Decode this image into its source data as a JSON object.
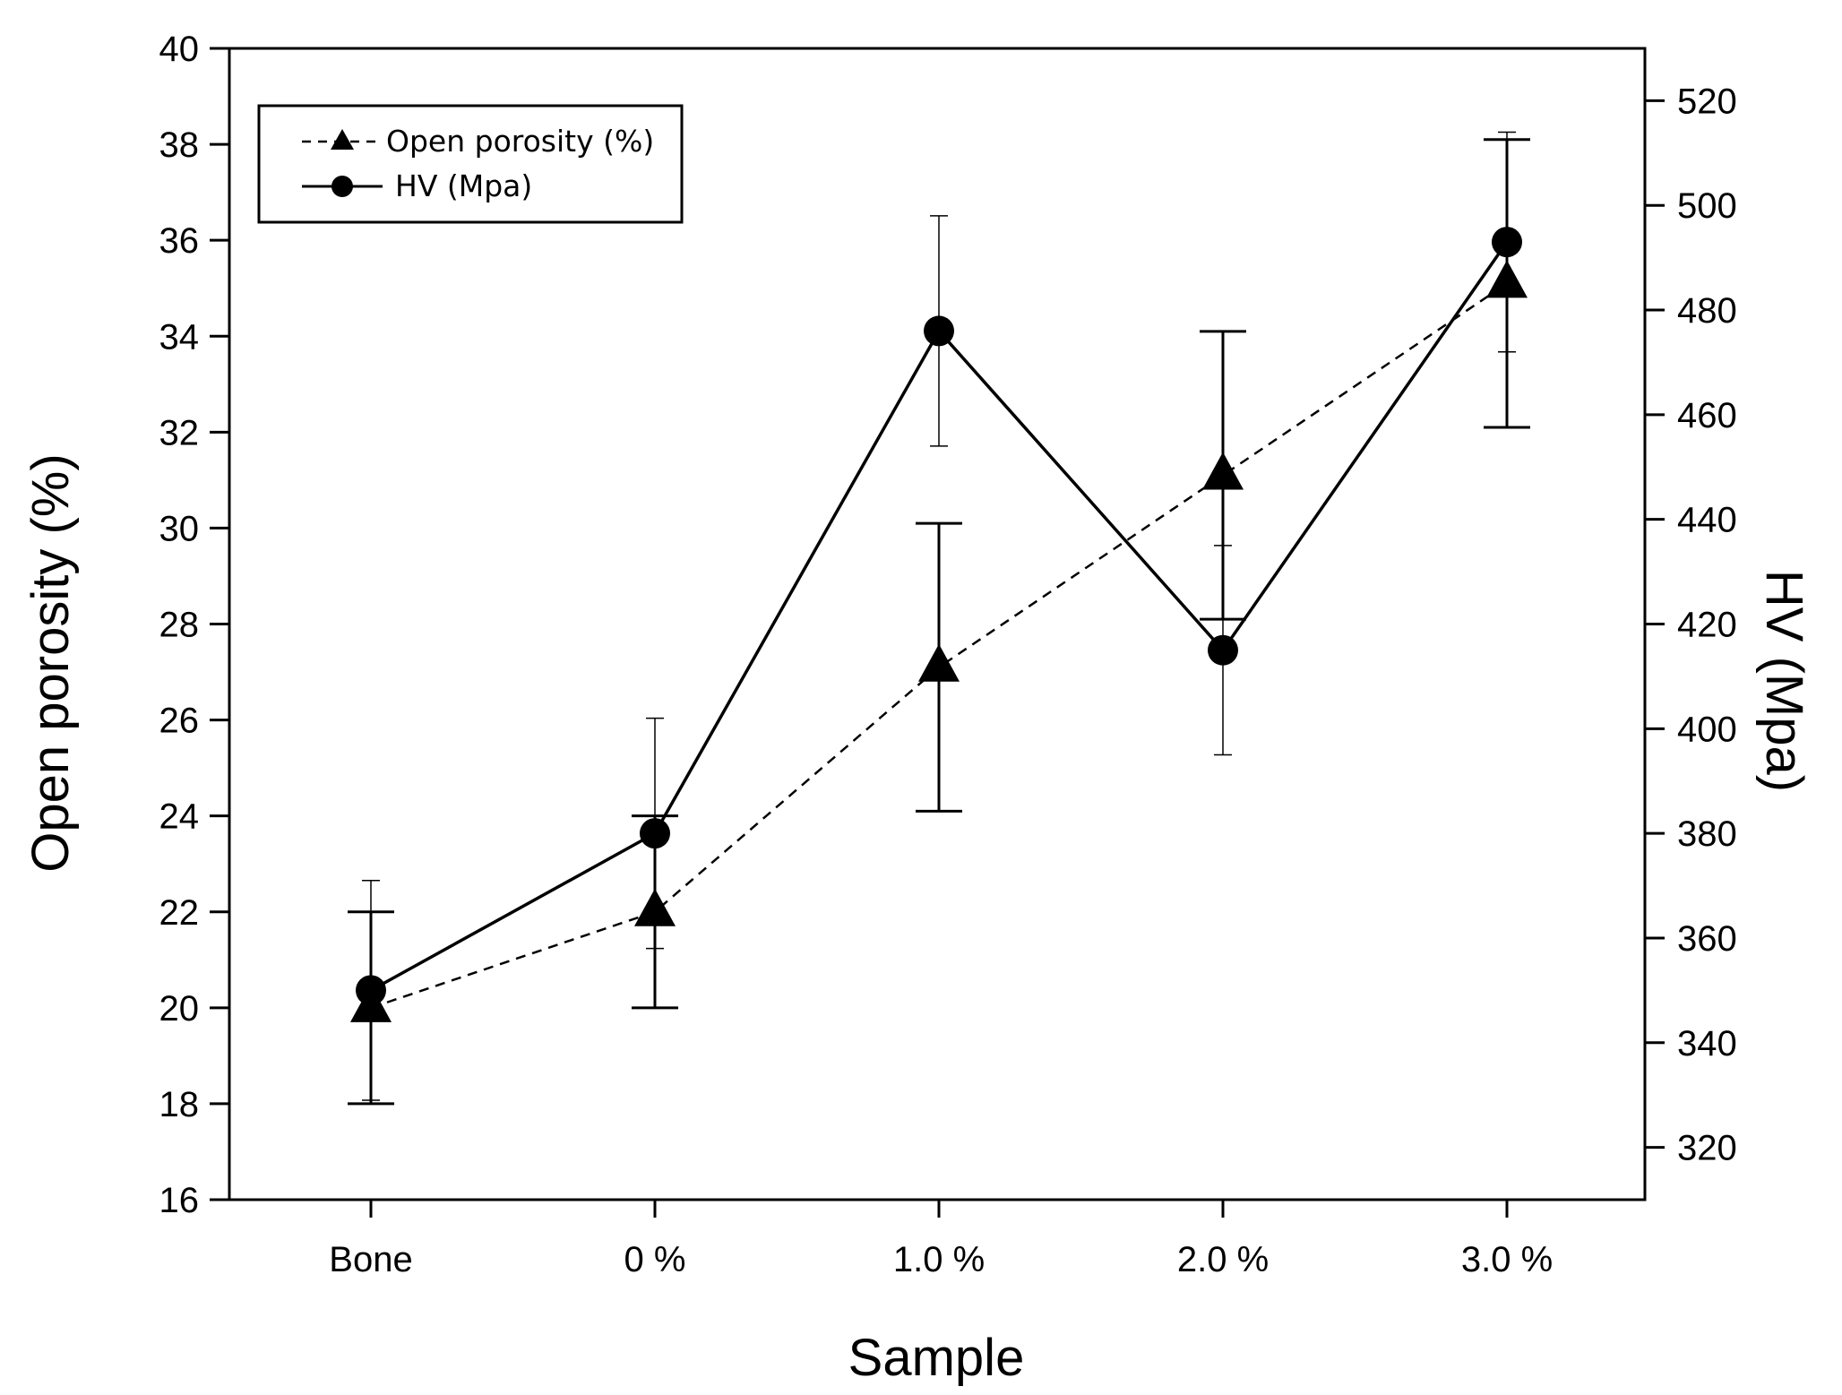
{
  "chart_data": {
    "type": "line",
    "xlabel": "Sample",
    "ylabel_left": "Open porosity  (%)",
    "ylabel_right": "HV  (Mpa)",
    "categories": [
      "Bone",
      "0 %",
      "1.0 %",
      "2.0 %",
      "3.0 %"
    ],
    "y_left": {
      "lim": [
        16,
        40
      ],
      "ticks": [
        16,
        18,
        20,
        22,
        24,
        26,
        28,
        30,
        32,
        34,
        36,
        38,
        40
      ]
    },
    "y_right": {
      "lim": [
        310,
        530
      ],
      "ticks": [
        320,
        340,
        360,
        380,
        400,
        420,
        440,
        460,
        480,
        500,
        520
      ]
    },
    "series": [
      {
        "name": "Open porosity  (%)",
        "axis": "left",
        "marker": "triangle",
        "line": "dashed",
        "values": [
          20.0,
          22.0,
          27.1,
          31.1,
          35.1
        ],
        "error": [
          2.0,
          2.0,
          3.0,
          3.0,
          3.0
        ]
      },
      {
        "name": "HV  (Mpa)",
        "axis": "right",
        "marker": "circle",
        "line": "solid",
        "values": [
          350,
          380,
          476,
          415,
          493
        ],
        "error": [
          21,
          22,
          22,
          20,
          21
        ]
      }
    ]
  }
}
